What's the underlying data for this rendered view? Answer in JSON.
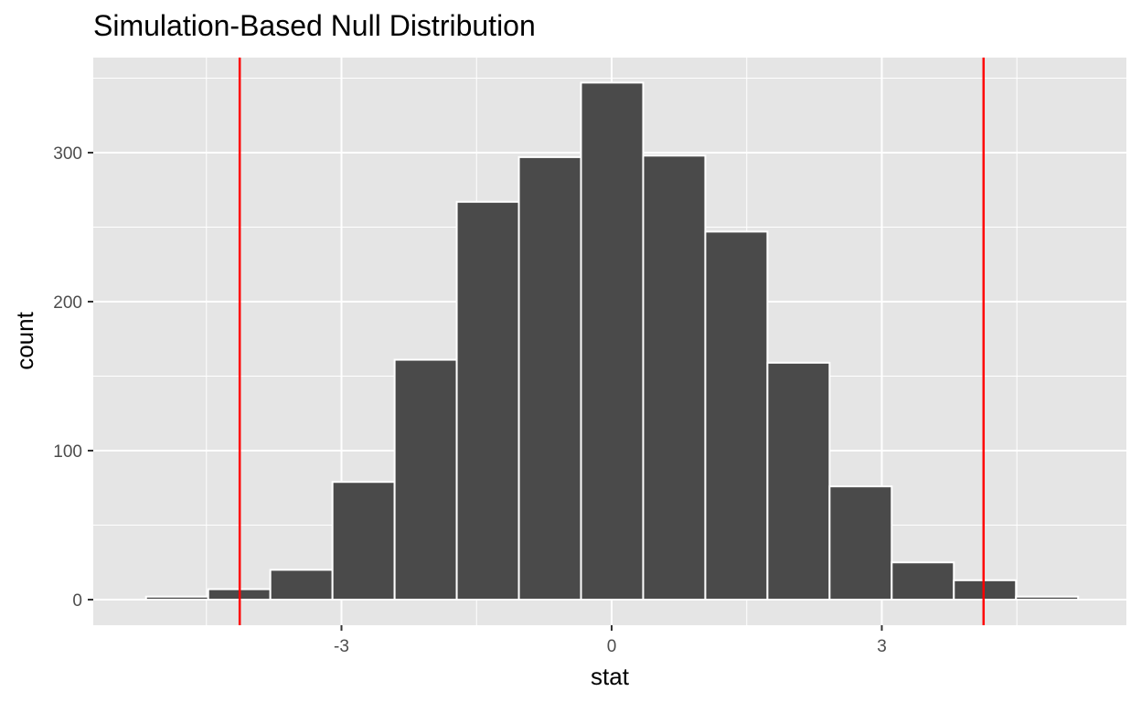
{
  "chart_data": {
    "type": "bar",
    "title": "Simulation-Based Null Distribution",
    "xlabel": "stat",
    "ylabel": "count",
    "bin_width": 0.69,
    "bins": [
      {
        "x_start": -5.17,
        "x_end": -4.48,
        "count": 2
      },
      {
        "x_start": -4.48,
        "x_end": -3.79,
        "count": 7
      },
      {
        "x_start": -3.79,
        "x_end": -3.1,
        "count": 20
      },
      {
        "x_start": -3.1,
        "x_end": -2.41,
        "count": 79
      },
      {
        "x_start": -2.41,
        "x_end": -1.72,
        "count": 161
      },
      {
        "x_start": -1.72,
        "x_end": -1.03,
        "count": 267
      },
      {
        "x_start": -1.03,
        "x_end": -0.34,
        "count": 297
      },
      {
        "x_start": -0.34,
        "x_end": 0.35,
        "count": 347
      },
      {
        "x_start": 0.35,
        "x_end": 1.04,
        "count": 298
      },
      {
        "x_start": 1.04,
        "x_end": 1.73,
        "count": 247
      },
      {
        "x_start": 1.73,
        "x_end": 2.42,
        "count": 159
      },
      {
        "x_start": 2.42,
        "x_end": 3.11,
        "count": 76
      },
      {
        "x_start": 3.11,
        "x_end": 3.8,
        "count": 25
      },
      {
        "x_start": 3.8,
        "x_end": 4.49,
        "count": 13
      },
      {
        "x_start": 4.49,
        "x_end": 5.18,
        "count": 2
      }
    ],
    "vlines": [
      -4.13,
      4.13
    ],
    "vline_color": "#ff0000",
    "bar_fill": "#4a4a4a",
    "bar_stroke": "#ffffff",
    "panel_background": "#e5e5e5",
    "grid": true,
    "xlim": [
      -5.7,
      5.7
    ],
    "ylim": [
      -17,
      370
    ],
    "x_ticks": [
      -3,
      0,
      3
    ],
    "x_tick_labels": [
      "-3",
      "0",
      "3"
    ],
    "y_ticks": [
      0,
      100,
      200,
      300
    ],
    "y_tick_labels": [
      "0",
      "100",
      "200",
      "300"
    ]
  }
}
